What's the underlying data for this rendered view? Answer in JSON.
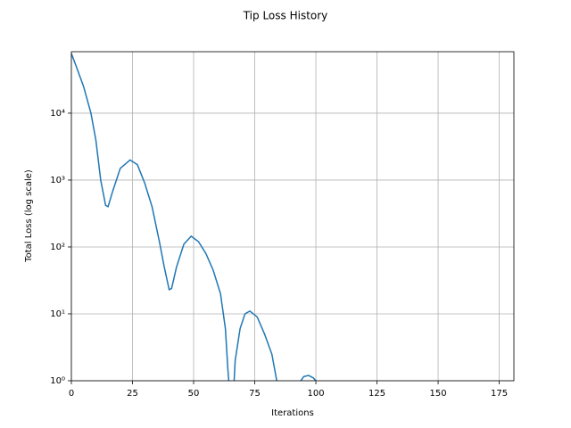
{
  "chart_data": {
    "type": "line",
    "title": "Tip Loss History",
    "x_label": "Iterations",
    "y_label": "Total Loss (log scale)",
    "log_y": true,
    "grid": true,
    "xlim": [
      0,
      181
    ],
    "ylim": [
      1,
      83000
    ],
    "xticks": [
      0,
      25,
      50,
      75,
      100,
      125,
      150,
      175
    ],
    "yticks": [
      {
        "value": 1,
        "label": "10⁰"
      },
      {
        "value": 10,
        "label": "10¹"
      },
      {
        "value": 100,
        "label": "10²"
      },
      {
        "value": 1000,
        "label": "10³"
      },
      {
        "value": 10000,
        "label": "10⁴"
      }
    ],
    "series": [
      {
        "color": "#1f77b4",
        "x": [
          0,
          2,
          5,
          8,
          10,
          12,
          14,
          15,
          17,
          20,
          24,
          27,
          30,
          33,
          36,
          38,
          40,
          41,
          43,
          46,
          49,
          52,
          55,
          58,
          61,
          63,
          64,
          65,
          66,
          67,
          69,
          71,
          73,
          76,
          79,
          82,
          84,
          85,
          93,
          95,
          97,
          99,
          101,
          105
        ],
        "values": [
          78000,
          50000,
          25000,
          10000,
          4000,
          1000,
          420,
          400,
          700,
          1500,
          2000,
          1700,
          900,
          400,
          120,
          50,
          23,
          24,
          50,
          110,
          145,
          120,
          80,
          45,
          20,
          6,
          1.5,
          0.5,
          0.4,
          2,
          6,
          10,
          11,
          9,
          5,
          2.5,
          1,
          0.5,
          0.9,
          1.15,
          1.2,
          1.1,
          0.9,
          0.3
        ]
      }
    ]
  }
}
